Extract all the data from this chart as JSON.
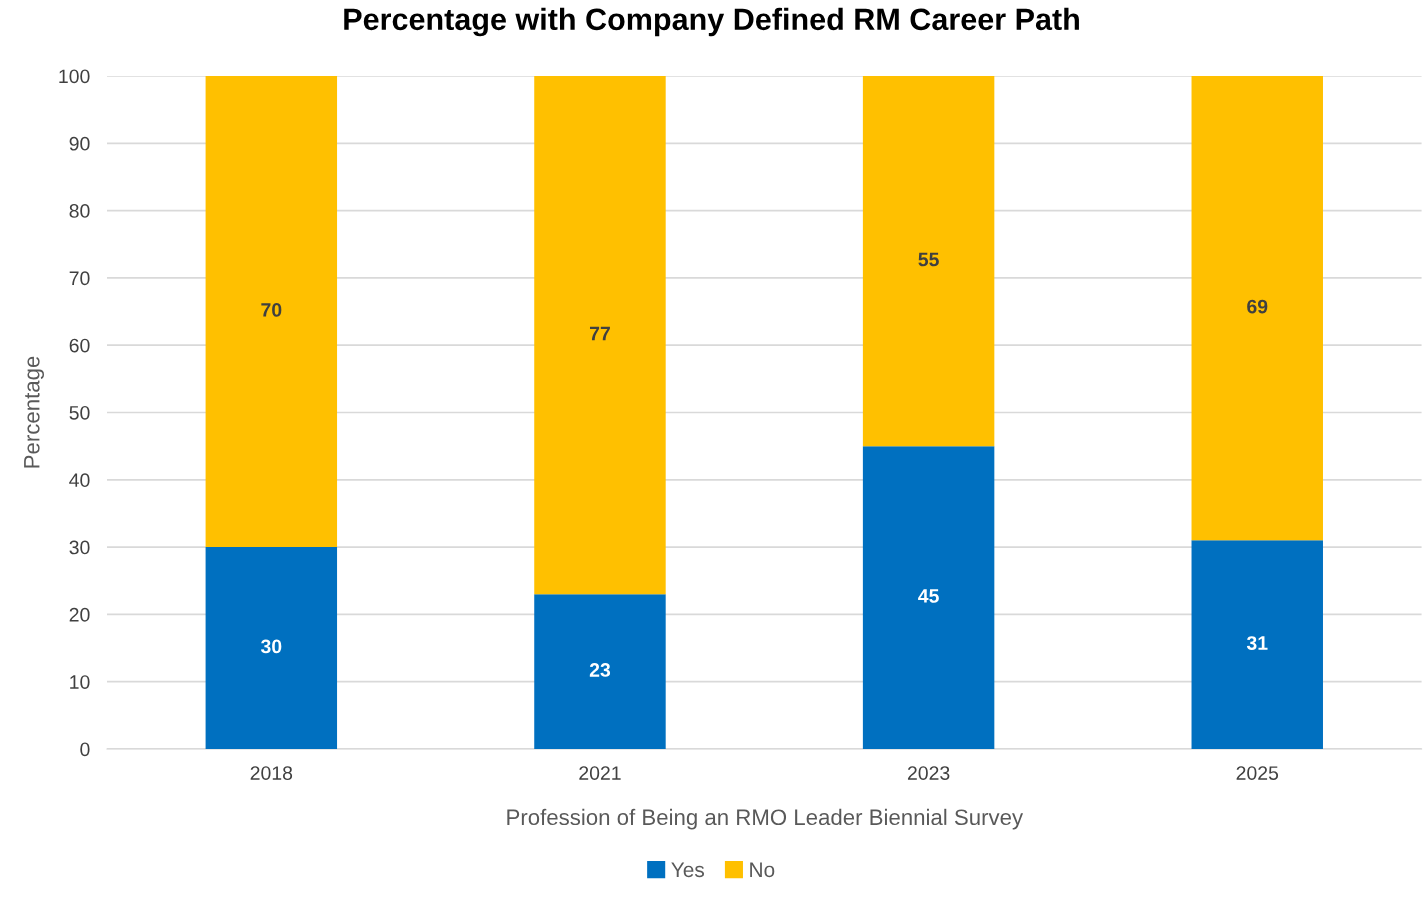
{
  "chart_data": {
    "type": "bar",
    "title": "Percentage with Company Defined RM Career Path",
    "xlabel": "Profession of Being an RMO Leader Biennial Survey",
    "ylabel": "Percentage",
    "categories": [
      "2018",
      "2021",
      "2023",
      "2025"
    ],
    "series": [
      {
        "name": "Yes",
        "color": "#0070c0",
        "values": [
          30,
          23,
          45,
          31
        ]
      },
      {
        "name": "No",
        "color": "#ffc000",
        "values": [
          70,
          77,
          55,
          69
        ]
      }
    ],
    "stacked": true,
    "ylim": [
      0,
      100
    ],
    "yticks": [
      0,
      10,
      20,
      30,
      40,
      50,
      60,
      70,
      80,
      90,
      100
    ],
    "grid": "y",
    "legend": "bottom",
    "data_labels": true
  }
}
